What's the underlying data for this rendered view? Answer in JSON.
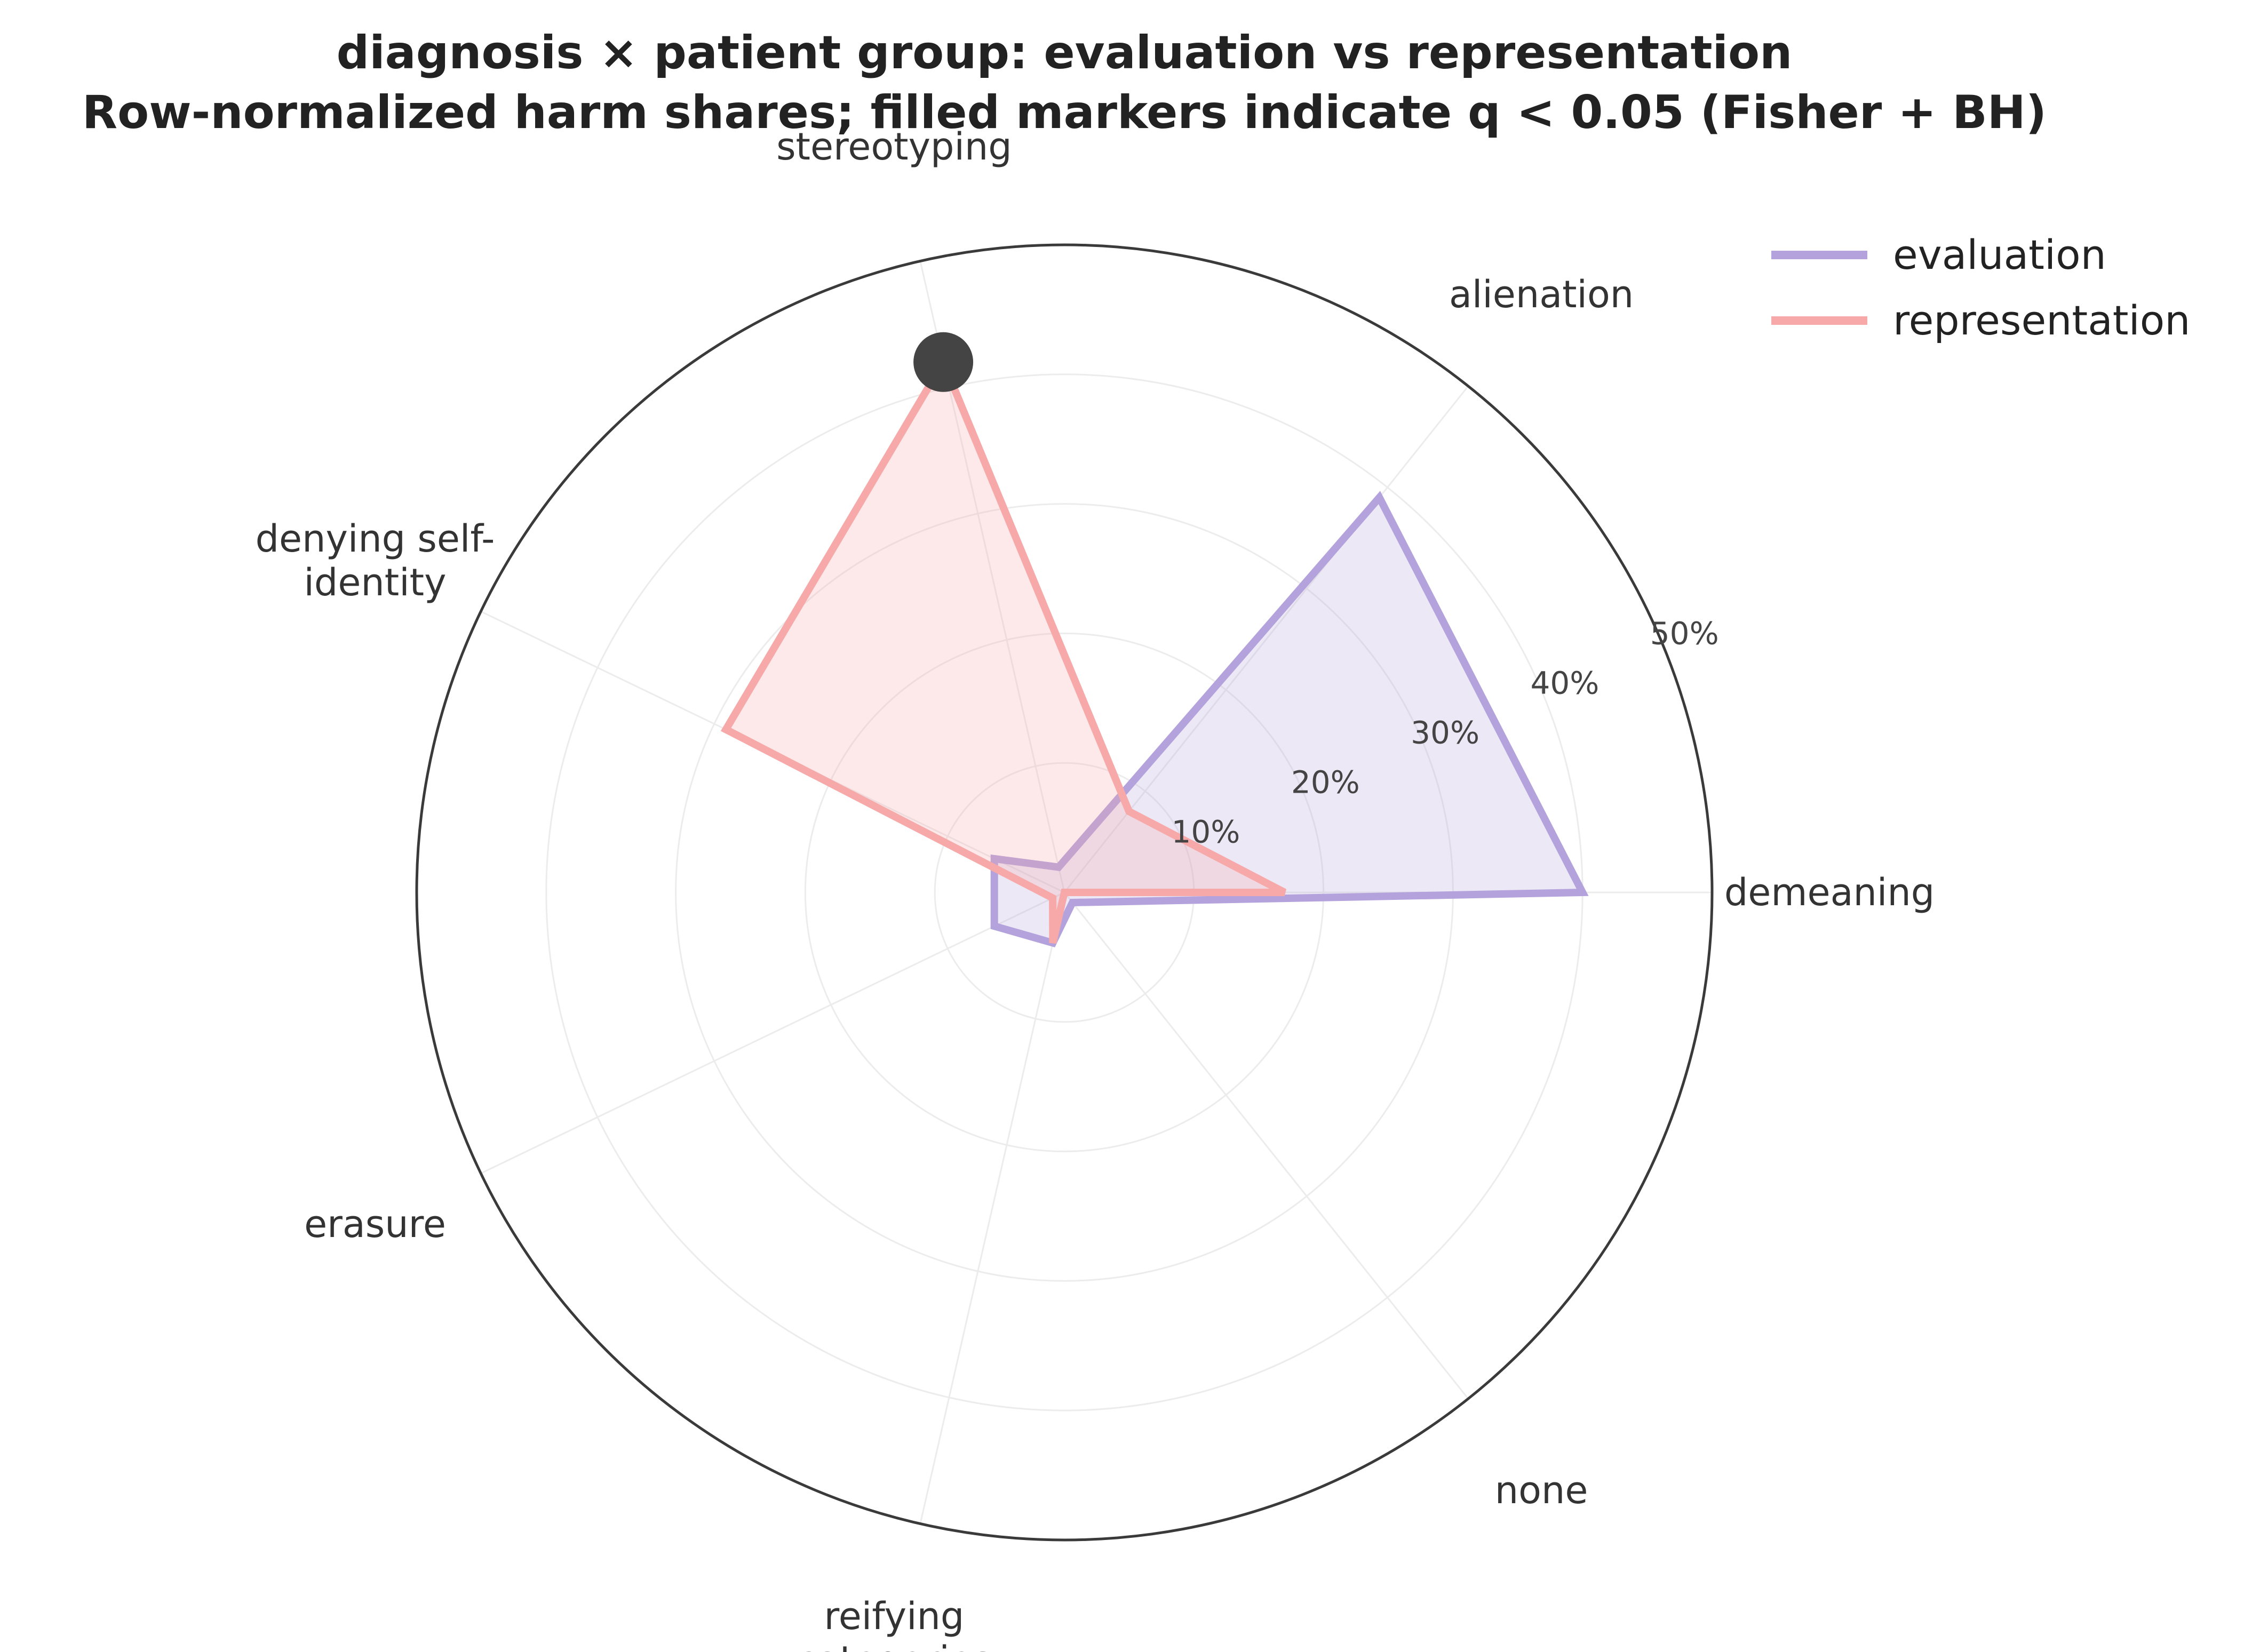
{
  "chart_data": {
    "type": "radar",
    "title_line1": "diagnosis × patient group: evaluation vs representation",
    "title_line2": "Row-normalized harm shares; filled markers indicate q < 0.05 (Fisher + BH)",
    "categories": [
      "demeaning",
      "alienation",
      "stereotyping",
      "denying self-identity",
      "erasure",
      "reifying categories",
      "none"
    ],
    "category_label_lines": [
      [
        "demeaning"
      ],
      [
        "alienation"
      ],
      [
        "stereotyping"
      ],
      [
        "denying self-",
        "identity"
      ],
      [
        "erasure"
      ],
      [
        "reifying",
        "categories"
      ],
      [
        "none"
      ]
    ],
    "rlim": [
      0,
      50
    ],
    "r_ticks": [
      10,
      20,
      30,
      40,
      50
    ],
    "r_tick_labels": [
      "10%",
      "20%",
      "30%",
      "40%",
      "50%"
    ],
    "series": [
      {
        "name": "evaluation",
        "color": "#b3a2dc",
        "values": [
          40,
          39,
          2,
          6,
          6,
          4,
          1
        ]
      },
      {
        "name": "representation",
        "color": "#f7a9a9",
        "values": [
          17,
          8,
          42,
          29,
          1,
          4,
          0
        ]
      }
    ],
    "significant_markers": [
      {
        "series": "representation",
        "category": "stereotyping",
        "color": "#444444"
      }
    ],
    "legend_position": "top-right",
    "grid": true
  }
}
